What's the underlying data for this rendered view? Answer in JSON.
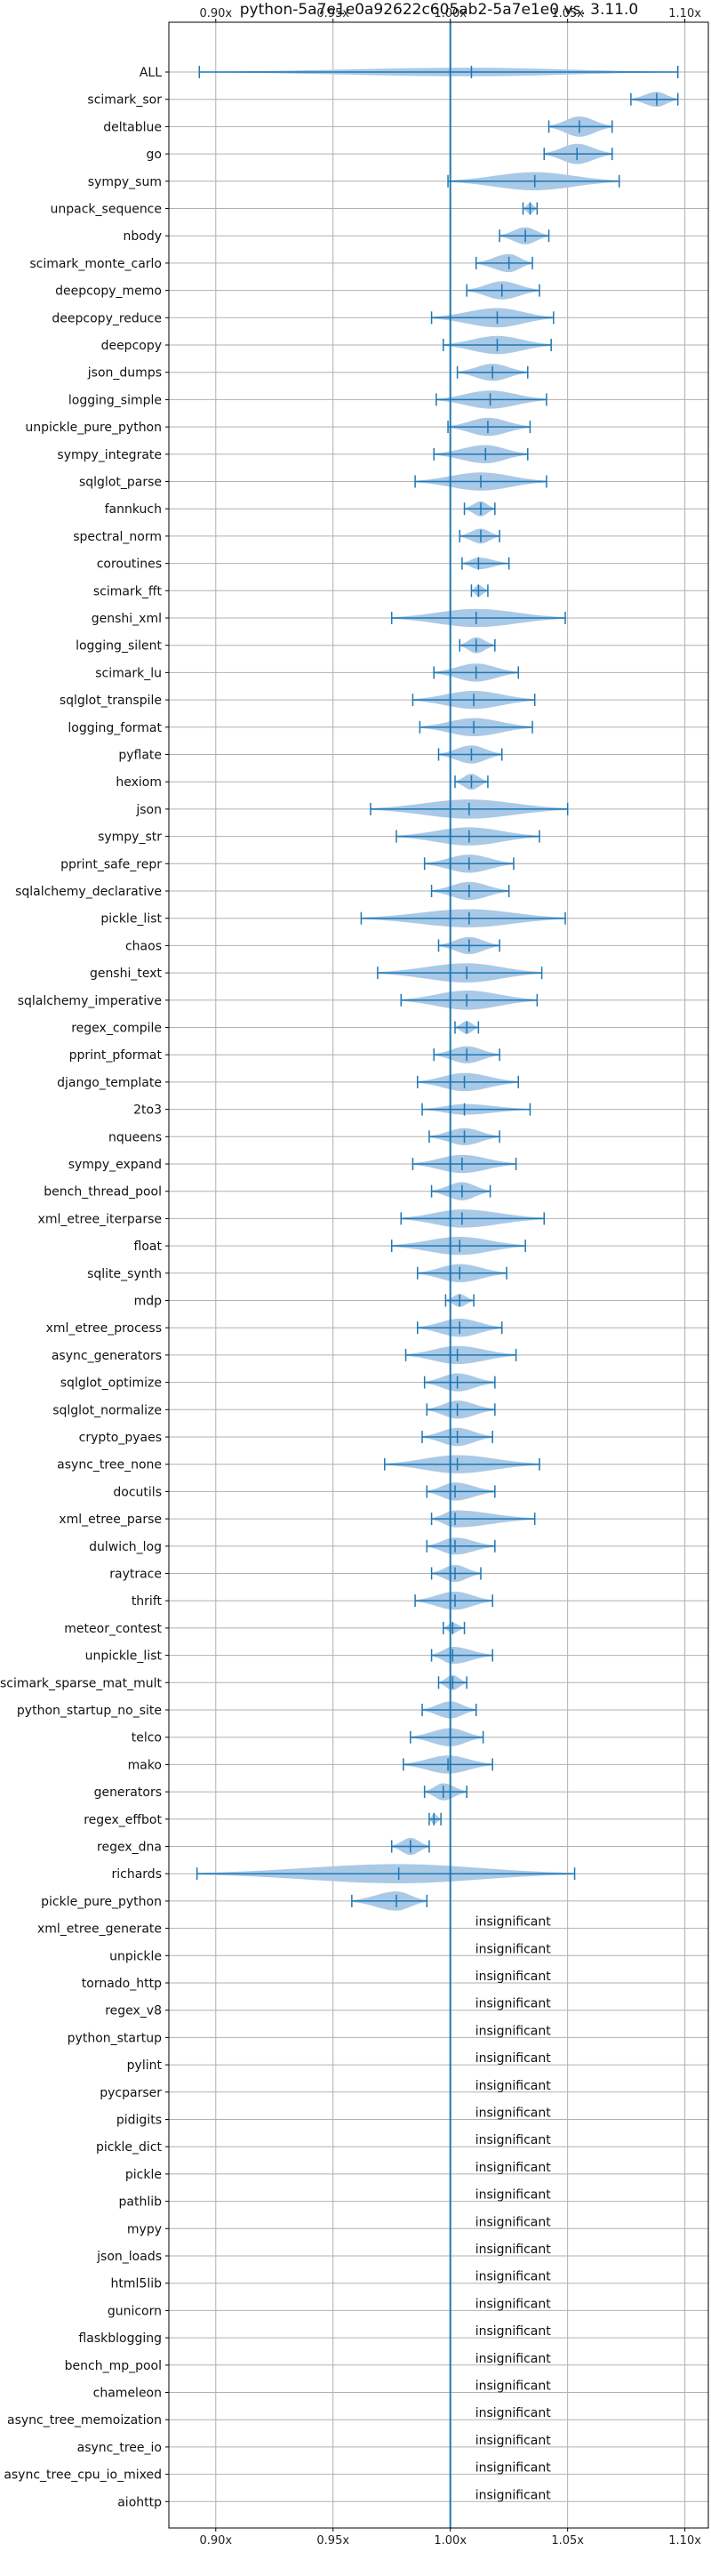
{
  "chart_data": {
    "type": "violin",
    "title": "python-5a7e1e0a92622c605ab2-5a7e1e0 vs. 3.11.0",
    "xlabel": "",
    "ylabel": "",
    "xlim": [
      0.88,
      1.11
    ],
    "x_ticks": [
      {
        "value": 0.9,
        "label": "0.90x"
      },
      {
        "value": 0.95,
        "label": "0.95x"
      },
      {
        "value": 1.0,
        "label": "1.00x"
      },
      {
        "value": 1.05,
        "label": "1.05x"
      },
      {
        "value": 1.1,
        "label": "1.10x"
      }
    ],
    "grid": true,
    "reference_line": 1.0,
    "colors": {
      "violin": "#a9c9e6",
      "line": "#1f77b4",
      "grid": "#b0b0b0"
    },
    "insignificant_label": "insignificant",
    "benchmarks": [
      {
        "name": "ALL",
        "min": 0.893,
        "max": 1.097,
        "median": 1.009,
        "width": 0.4
      },
      {
        "name": "scimark_sor",
        "min": 1.077,
        "max": 1.097,
        "median": 1.088,
        "width": 0.7
      },
      {
        "name": "deltablue",
        "min": 1.042,
        "max": 1.069,
        "median": 1.055,
        "width": 0.95
      },
      {
        "name": "go",
        "min": 1.04,
        "max": 1.069,
        "median": 1.054,
        "width": 0.95
      },
      {
        "name": "sympy_sum",
        "min": 0.999,
        "max": 1.072,
        "median": 1.036,
        "width": 0.85
      },
      {
        "name": "unpack_sequence",
        "min": 1.031,
        "max": 1.037,
        "median": 1.034,
        "width": 0.5
      },
      {
        "name": "nbody",
        "min": 1.021,
        "max": 1.042,
        "median": 1.032,
        "width": 0.8
      },
      {
        "name": "scimark_monte_carlo",
        "min": 1.011,
        "max": 1.035,
        "median": 1.025,
        "width": 0.85
      },
      {
        "name": "deepcopy_memo",
        "min": 1.007,
        "max": 1.038,
        "median": 1.022,
        "width": 0.85
      },
      {
        "name": "deepcopy_reduce",
        "min": 0.992,
        "max": 1.044,
        "median": 1.02,
        "width": 0.9
      },
      {
        "name": "deepcopy",
        "min": 0.997,
        "max": 1.043,
        "median": 1.02,
        "width": 0.85
      },
      {
        "name": "json_dumps",
        "min": 1.003,
        "max": 1.033,
        "median": 1.018,
        "width": 0.8
      },
      {
        "name": "logging_simple",
        "min": 0.994,
        "max": 1.041,
        "median": 1.017,
        "width": 0.85
      },
      {
        "name": "unpickle_pure_python",
        "min": 0.999,
        "max": 1.034,
        "median": 1.016,
        "width": 0.85
      },
      {
        "name": "sympy_integrate",
        "min": 0.993,
        "max": 1.033,
        "median": 1.015,
        "width": 0.85
      },
      {
        "name": "sqlglot_parse",
        "min": 0.985,
        "max": 1.041,
        "median": 1.013,
        "width": 0.85
      },
      {
        "name": "fannkuch",
        "min": 1.006,
        "max": 1.019,
        "median": 1.013,
        "width": 0.7
      },
      {
        "name": "spectral_norm",
        "min": 1.004,
        "max": 1.021,
        "median": 1.013,
        "width": 0.7
      },
      {
        "name": "coroutines",
        "min": 1.005,
        "max": 1.025,
        "median": 1.012,
        "width": 0.55
      },
      {
        "name": "scimark_fft",
        "min": 1.009,
        "max": 1.016,
        "median": 1.012,
        "width": 0.55
      },
      {
        "name": "genshi_xml",
        "min": 0.975,
        "max": 1.049,
        "median": 1.011,
        "width": 0.85
      },
      {
        "name": "logging_silent",
        "min": 1.004,
        "max": 1.019,
        "median": 1.011,
        "width": 0.75
      },
      {
        "name": "scimark_lu",
        "min": 0.993,
        "max": 1.029,
        "median": 1.011,
        "width": 0.85
      },
      {
        "name": "sqlglot_transpile",
        "min": 0.984,
        "max": 1.036,
        "median": 1.01,
        "width": 0.85
      },
      {
        "name": "logging_format",
        "min": 0.987,
        "max": 1.035,
        "median": 1.01,
        "width": 0.85
      },
      {
        "name": "pyflate",
        "min": 0.995,
        "max": 1.022,
        "median": 1.009,
        "width": 0.85
      },
      {
        "name": "hexiom",
        "min": 1.002,
        "max": 1.016,
        "median": 1.009,
        "width": 0.75
      },
      {
        "name": "json",
        "min": 0.966,
        "max": 1.05,
        "median": 1.008,
        "width": 0.9
      },
      {
        "name": "sympy_str",
        "min": 0.977,
        "max": 1.038,
        "median": 1.008,
        "width": 0.85
      },
      {
        "name": "pprint_safe_repr",
        "min": 0.989,
        "max": 1.027,
        "median": 1.008,
        "width": 0.85
      },
      {
        "name": "sqlalchemy_declarative",
        "min": 0.992,
        "max": 1.025,
        "median": 1.008,
        "width": 0.85
      },
      {
        "name": "pickle_list",
        "min": 0.962,
        "max": 1.049,
        "median": 1.008,
        "width": 0.85
      },
      {
        "name": "chaos",
        "min": 0.995,
        "max": 1.021,
        "median": 1.008,
        "width": 0.8
      },
      {
        "name": "genshi_text",
        "min": 0.969,
        "max": 1.039,
        "median": 1.007,
        "width": 0.9
      },
      {
        "name": "sqlalchemy_imperative",
        "min": 0.979,
        "max": 1.037,
        "median": 1.007,
        "width": 0.9
      },
      {
        "name": "regex_compile",
        "min": 1.002,
        "max": 1.012,
        "median": 1.007,
        "width": 0.6
      },
      {
        "name": "pprint_pformat",
        "min": 0.993,
        "max": 1.021,
        "median": 1.007,
        "width": 0.8
      },
      {
        "name": "django_template",
        "min": 0.986,
        "max": 1.029,
        "median": 1.006,
        "width": 0.85
      },
      {
        "name": "2to3",
        "min": 0.988,
        "max": 1.034,
        "median": 1.006,
        "width": 0.5
      },
      {
        "name": "nqueens",
        "min": 0.991,
        "max": 1.021,
        "median": 1.006,
        "width": 0.8
      },
      {
        "name": "sympy_expand",
        "min": 0.984,
        "max": 1.028,
        "median": 1.005,
        "width": 0.85
      },
      {
        "name": "bench_thread_pool",
        "min": 0.992,
        "max": 1.017,
        "median": 1.005,
        "width": 0.85
      },
      {
        "name": "xml_etree_iterparse",
        "min": 0.979,
        "max": 1.04,
        "median": 1.005,
        "width": 0.85
      },
      {
        "name": "float",
        "min": 0.975,
        "max": 1.032,
        "median": 1.004,
        "width": 0.85
      },
      {
        "name": "sqlite_synth",
        "min": 0.986,
        "max": 1.024,
        "median": 1.004,
        "width": 0.85
      },
      {
        "name": "mdp",
        "min": 0.998,
        "max": 1.01,
        "median": 1.004,
        "width": 0.6
      },
      {
        "name": "xml_etree_process",
        "min": 0.986,
        "max": 1.022,
        "median": 1.004,
        "width": 0.85
      },
      {
        "name": "async_generators",
        "min": 0.981,
        "max": 1.028,
        "median": 1.003,
        "width": 0.85
      },
      {
        "name": "sqlglot_optimize",
        "min": 0.989,
        "max": 1.019,
        "median": 1.003,
        "width": 0.85
      },
      {
        "name": "sqlglot_normalize",
        "min": 0.99,
        "max": 1.019,
        "median": 1.003,
        "width": 0.85
      },
      {
        "name": "crypto_pyaes",
        "min": 0.988,
        "max": 1.018,
        "median": 1.003,
        "width": 0.85
      },
      {
        "name": "async_tree_none",
        "min": 0.972,
        "max": 1.038,
        "median": 1.003,
        "width": 0.85
      },
      {
        "name": "docutils",
        "min": 0.99,
        "max": 1.019,
        "median": 1.002,
        "width": 0.85
      },
      {
        "name": "xml_etree_parse",
        "min": 0.992,
        "max": 1.036,
        "median": 1.002,
        "width": 0.8
      },
      {
        "name": "dulwich_log",
        "min": 0.99,
        "max": 1.019,
        "median": 1.002,
        "width": 0.8
      },
      {
        "name": "raytrace",
        "min": 0.992,
        "max": 1.013,
        "median": 1.002,
        "width": 0.8
      },
      {
        "name": "thrift",
        "min": 0.985,
        "max": 1.018,
        "median": 1.002,
        "width": 0.85
      },
      {
        "name": "meteor_contest",
        "min": 0.997,
        "max": 1.006,
        "median": 1.001,
        "width": 0.5
      },
      {
        "name": "unpickle_list",
        "min": 0.992,
        "max": 1.018,
        "median": 1.001,
        "width": 0.8
      },
      {
        "name": "scimark_sparse_mat_mult",
        "min": 0.995,
        "max": 1.007,
        "median": 1.001,
        "width": 0.7
      },
      {
        "name": "python_startup_no_site",
        "min": 0.988,
        "max": 1.011,
        "median": 1.0,
        "width": 0.8
      },
      {
        "name": "telco",
        "min": 0.983,
        "max": 1.014,
        "median": 1.0,
        "width": 0.85
      },
      {
        "name": "mako",
        "min": 0.98,
        "max": 1.018,
        "median": 0.999,
        "width": 0.85
      },
      {
        "name": "generators",
        "min": 0.989,
        "max": 1.007,
        "median": 0.997,
        "width": 0.8
      },
      {
        "name": "regex_effbot",
        "min": 0.991,
        "max": 0.996,
        "median": 0.993,
        "width": 0.5
      },
      {
        "name": "regex_dna",
        "min": 0.975,
        "max": 0.991,
        "median": 0.983,
        "width": 0.8
      },
      {
        "name": "richards",
        "min": 0.892,
        "max": 1.053,
        "median": 0.978,
        "width": 0.9
      },
      {
        "name": "pickle_pure_python",
        "min": 0.958,
        "max": 0.99,
        "median": 0.977,
        "width": 0.9
      },
      {
        "name": "xml_etree_generate",
        "insignificant": true
      },
      {
        "name": "unpickle",
        "insignificant": true
      },
      {
        "name": "tornado_http",
        "insignificant": true
      },
      {
        "name": "regex_v8",
        "insignificant": true
      },
      {
        "name": "python_startup",
        "insignificant": true
      },
      {
        "name": "pylint",
        "insignificant": true
      },
      {
        "name": "pycparser",
        "insignificant": true
      },
      {
        "name": "pidigits",
        "insignificant": true
      },
      {
        "name": "pickle_dict",
        "insignificant": true
      },
      {
        "name": "pickle",
        "insignificant": true
      },
      {
        "name": "pathlib",
        "insignificant": true
      },
      {
        "name": "mypy",
        "insignificant": true
      },
      {
        "name": "json_loads",
        "insignificant": true
      },
      {
        "name": "html5lib",
        "insignificant": true
      },
      {
        "name": "gunicorn",
        "insignificant": true
      },
      {
        "name": "flaskblogging",
        "insignificant": true
      },
      {
        "name": "bench_mp_pool",
        "insignificant": true
      },
      {
        "name": "chameleon",
        "insignificant": true
      },
      {
        "name": "async_tree_memoization",
        "insignificant": true
      },
      {
        "name": "async_tree_io",
        "insignificant": true
      },
      {
        "name": "async_tree_cpu_io_mixed",
        "insignificant": true
      },
      {
        "name": "aiohttp",
        "insignificant": true
      }
    ]
  }
}
